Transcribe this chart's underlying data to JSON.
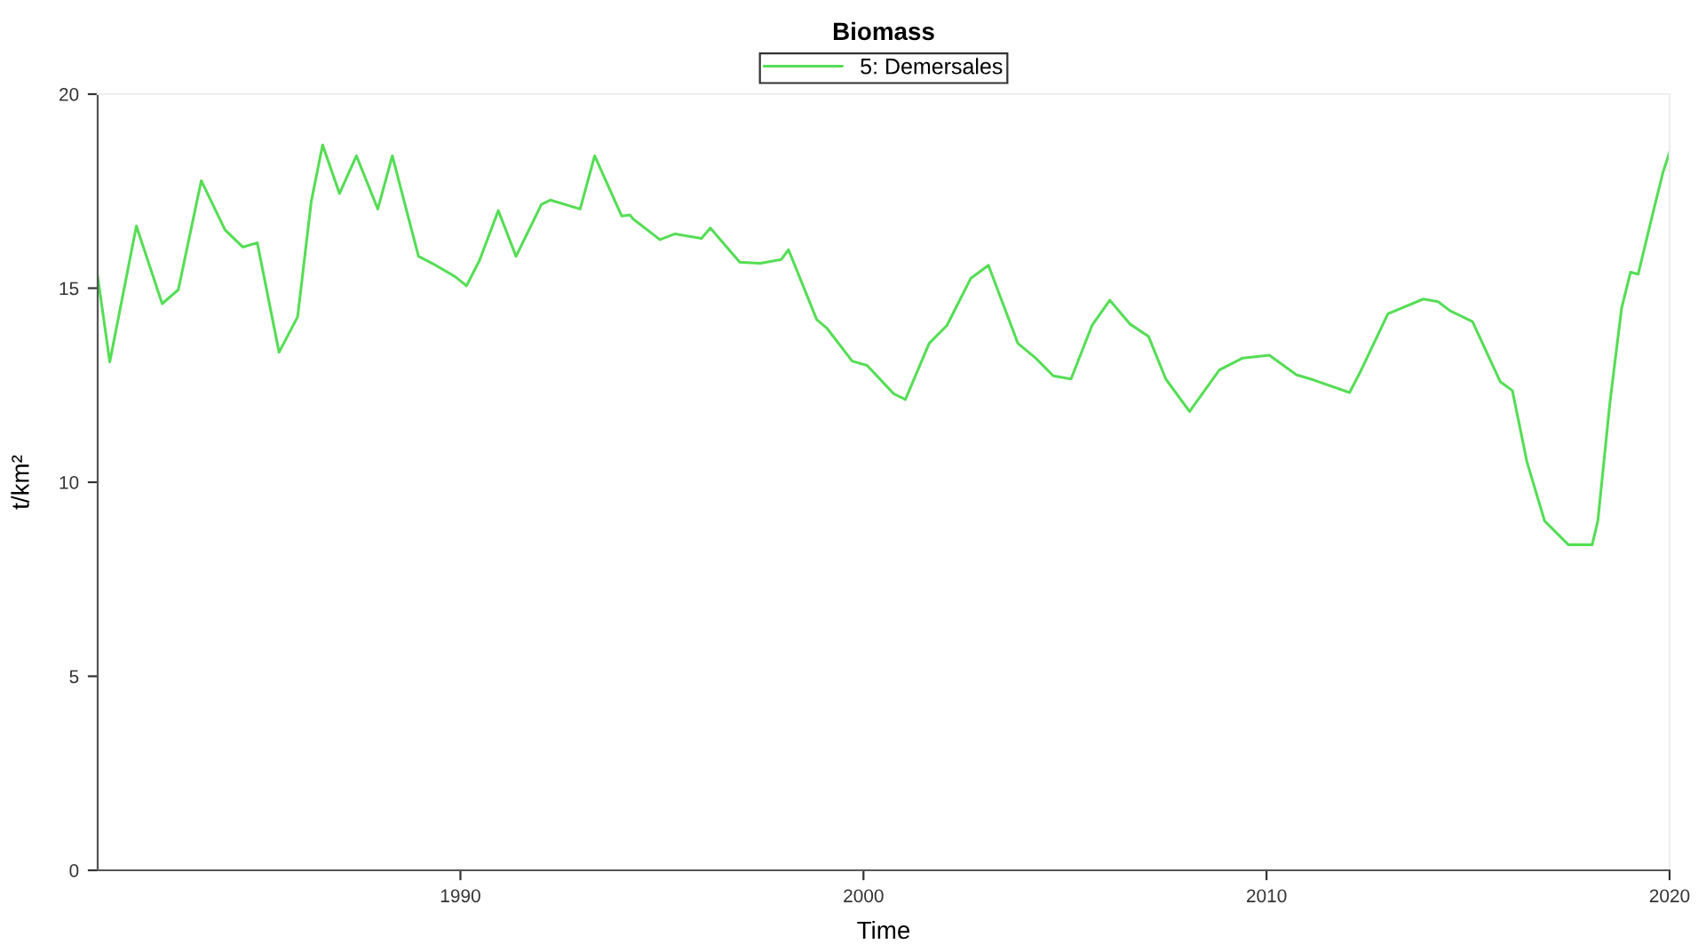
{
  "chart_data": {
    "type": "line",
    "title": "Biomass",
    "xlabel": "Time",
    "ylabel": "t/km²",
    "xlim": [
      1981,
      2020
    ],
    "xticks": [
      1990,
      2000,
      2010,
      2020
    ],
    "ylim": [
      0,
      20
    ],
    "yticks": [
      0,
      5,
      10,
      15,
      20
    ],
    "grid": false,
    "legend": "top",
    "marker": "none",
    "line_style": "solid",
    "series": [
      {
        "name": "5: Demersales",
        "color": "#55dd55",
        "x": [
          1981.0,
          1981.3,
          1981.96,
          1982.6,
          1983.0,
          1983.57,
          1984.16,
          1984.6,
          1984.96,
          1985.5,
          1985.96,
          1986.3,
          1986.58,
          1987.0,
          1987.42,
          1987.95,
          1988.31,
          1988.96,
          1989.3,
          1989.88,
          1990.15,
          1990.47,
          1990.94,
          1991.38,
          1992.01,
          1992.23,
          1992.97,
          1993.33,
          1994.0,
          1994.2,
          1994.29,
          1994.95,
          1995.32,
          1995.98,
          1996.2,
          1996.93,
          1997.44,
          1997.96,
          1998.14,
          1998.84,
          1999.1,
          1999.72,
          2000.09,
          2000.75,
          2001.04,
          2001.63,
          2002.07,
          2002.66,
          2003.1,
          2003.83,
          2004.27,
          2004.71,
          2005.15,
          2005.67,
          2006.11,
          2006.62,
          2007.07,
          2007.5,
          2008.09,
          2008.83,
          2009.41,
          2010.07,
          2010.74,
          2011.18,
          2012.06,
          2012.35,
          2013.01,
          2013.89,
          2014.26,
          2014.55,
          2015.11,
          2015.8,
          2016.1,
          2016.46,
          2016.9,
          2017.49,
          2018.08,
          2018.22,
          2018.52,
          2018.81,
          2019.03,
          2019.22,
          2019.62,
          2019.84,
          2020.0
        ],
        "values": [
          15.3,
          13.1,
          16.6,
          14.6,
          14.96,
          17.77,
          16.5,
          16.06,
          16.17,
          13.35,
          14.26,
          17.24,
          18.69,
          17.44,
          18.41,
          17.04,
          18.41,
          15.82,
          15.64,
          15.29,
          15.06,
          15.71,
          17.0,
          15.82,
          17.16,
          17.27,
          17.04,
          18.41,
          16.86,
          16.89,
          16.78,
          16.25,
          16.4,
          16.28,
          16.55,
          15.67,
          15.64,
          15.74,
          15.99,
          14.19,
          13.96,
          13.12,
          13.01,
          12.28,
          12.13,
          13.58,
          14.04,
          15.25,
          15.59,
          13.58,
          13.2,
          12.74,
          12.66,
          14.04,
          14.69,
          14.07,
          13.76,
          12.66,
          11.82,
          12.89,
          13.2,
          13.27,
          12.77,
          12.63,
          12.31,
          12.89,
          14.34,
          14.72,
          14.65,
          14.42,
          14.14,
          12.59,
          12.36,
          10.53,
          9.0,
          8.39,
          8.39,
          9.0,
          12.05,
          14.49,
          15.41,
          15.36,
          17.08,
          18.0,
          18.5
        ]
      }
    ]
  }
}
